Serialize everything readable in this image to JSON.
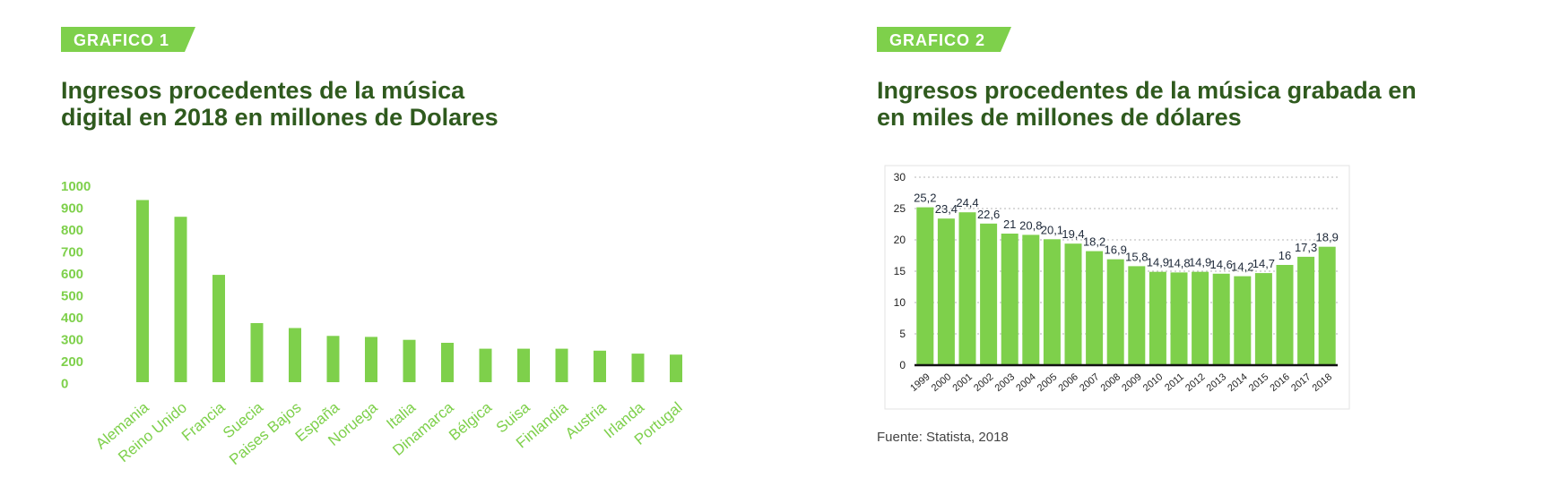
{
  "colors": {
    "bar": "#7ed04b",
    "badge": "#7ed04b",
    "title": "#2f5a1e",
    "axis_label": "#7ed04b",
    "value_label": "#1f2a3a"
  },
  "chart_data": [
    {
      "type": "bar",
      "badge": "GRAFICO 1",
      "title_lines": [
        "Ingresos procedentes de la música",
        "digital en 2018 en millones de Dolares"
      ],
      "categories": [
        "Alemania",
        "Reino Unido",
        "Francia",
        "Suecia",
        "Paises Bajos",
        "España",
        "Noruega",
        "Italia",
        "Dinamarca",
        "Bélgica",
        "Suisa",
        "Finlandia",
        "Austria",
        "Irlanda",
        "Portugal"
      ],
      "values": [
        925,
        840,
        545,
        300,
        275,
        235,
        230,
        215,
        200,
        170,
        170,
        170,
        160,
        145,
        140
      ],
      "yticks": [
        "1000",
        "900",
        "800",
        "700",
        "600",
        "500",
        "400",
        "300",
        "200",
        "0"
      ],
      "ylim": [
        0,
        1000
      ],
      "grid": false,
      "legend": "none"
    },
    {
      "type": "bar",
      "badge": "GRAFICO 2",
      "title_lines": [
        "Ingresos procedentes de la música grabada en",
        "en miles de millones de dólares"
      ],
      "categories": [
        "1999",
        "2000",
        "2001",
        "2002",
        "2003",
        "2004",
        "2005",
        "2006",
        "2007",
        "2008",
        "2009",
        "2010",
        "2011",
        "2012",
        "2013",
        "2014",
        "2015",
        "2016",
        "2017",
        "2018"
      ],
      "values": [
        25.2,
        23.4,
        24.4,
        22.6,
        21,
        20.8,
        20.1,
        19.4,
        18.2,
        16.9,
        15.8,
        14.9,
        14.8,
        14.9,
        14.6,
        14.2,
        14.7,
        16,
        17.3,
        18.9
      ],
      "value_labels": [
        "25,2",
        "23,4",
        "24,4",
        "22,6",
        "21",
        "20,8",
        "20,1",
        "19,4",
        "18,2",
        "16,9",
        "15,8",
        "14,9",
        "14,8",
        "14,9",
        "14,6",
        "14,2",
        "14,7",
        "16",
        "17,3",
        "18,9"
      ],
      "yticks": [
        "30",
        "25",
        "20",
        "15",
        "10",
        "5",
        "0"
      ],
      "ylim": [
        0,
        30
      ],
      "grid": true,
      "legend": "none",
      "source": "Fuente: Statista, 2018"
    }
  ]
}
